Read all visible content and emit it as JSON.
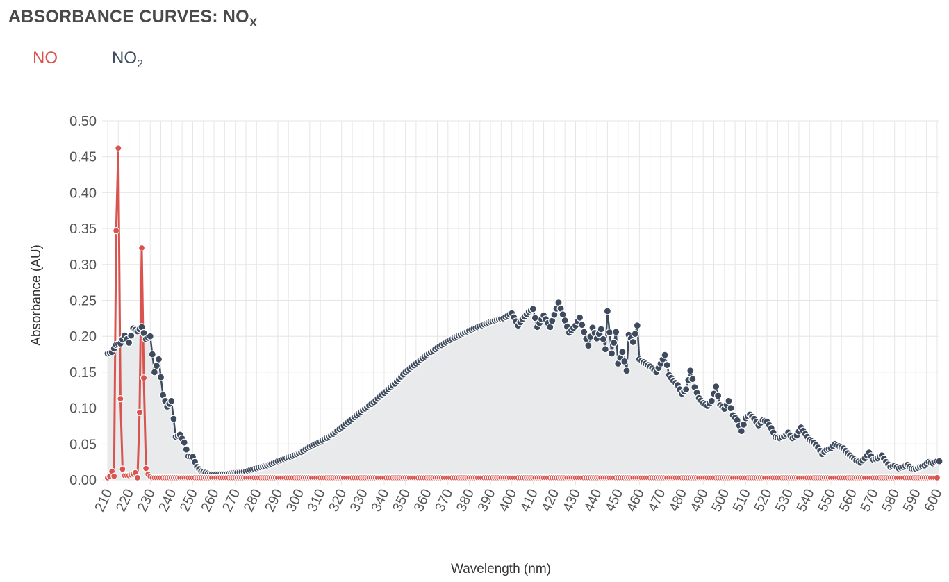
{
  "header": {
    "title_main": "ABSORBANCE CURVES: NO",
    "title_sub": "X"
  },
  "legend": [
    {
      "main": "NO",
      "sub": "",
      "color": "#d9534f"
    },
    {
      "main": "NO",
      "sub": "2",
      "color": "#3e4b5e"
    }
  ],
  "colors": {
    "no": "#d9534f",
    "no2": "#3e4b5e",
    "area": "#e9eaec",
    "grid": "#e6e6e6"
  },
  "chart_data": {
    "type": "line",
    "title": "ABSORBANCE CURVES: NOX",
    "xlabel": "Wavelength (nm)",
    "ylabel": "Absorbance (AU)",
    "xlim": [
      210,
      601
    ],
    "ylim": [
      0,
      0.5
    ],
    "yticks": [
      "0.00",
      "0.05",
      "0.10",
      "0.15",
      "0.20",
      "0.25",
      "0.30",
      "0.35",
      "0.40",
      "0.45",
      "0.50"
    ],
    "xticks": [
      "210",
      "220",
      "230",
      "240",
      "250",
      "260",
      "270",
      "280",
      "290",
      "300",
      "310",
      "320",
      "330",
      "340",
      "350",
      "360",
      "370",
      "380",
      "390",
      "400",
      "410",
      "420",
      "430",
      "440",
      "450",
      "460",
      "470",
      "480",
      "490",
      "500",
      "510",
      "520",
      "530",
      "540",
      "550",
      "560",
      "570",
      "580",
      "590",
      "600"
    ],
    "grid": true,
    "series": [
      {
        "name": "NO",
        "color": "#d9534f",
        "fill": false,
        "base": 0.003,
        "peaks": [
          [
            211,
            0.005
          ],
          [
            212,
            0.012
          ],
          [
            213,
            0.005
          ],
          [
            214,
            0.347
          ],
          [
            215,
            0.462
          ],
          [
            216,
            0.113
          ],
          [
            217,
            0.015
          ],
          [
            218,
            0.006
          ],
          [
            219,
            0.006
          ],
          [
            220,
            0.006
          ],
          [
            221,
            0.007
          ],
          [
            222,
            0.008
          ],
          [
            223,
            0.01
          ],
          [
            224,
            0.003
          ],
          [
            225,
            0.094
          ],
          [
            226,
            0.323
          ],
          [
            227,
            0.142
          ],
          [
            228,
            0.016
          ],
          [
            229,
            0.008
          ],
          [
            230,
            0.005
          ]
        ]
      },
      {
        "name": "NO2",
        "color": "#3e4b5e",
        "fill": true,
        "points": [
          [
            210,
            0.176
          ],
          [
            212,
            0.178
          ],
          [
            214,
            0.188
          ],
          [
            216,
            0.19
          ],
          [
            218,
            0.201
          ],
          [
            220,
            0.191
          ],
          [
            222,
            0.211
          ],
          [
            224,
            0.207
          ],
          [
            226,
            0.213
          ],
          [
            228,
            0.196
          ],
          [
            230,
            0.2
          ],
          [
            232,
            0.15
          ],
          [
            234,
            0.168
          ],
          [
            236,
            0.118
          ],
          [
            238,
            0.102
          ],
          [
            240,
            0.11
          ],
          [
            242,
            0.06
          ],
          [
            244,
            0.063
          ],
          [
            246,
            0.052
          ],
          [
            248,
            0.033
          ],
          [
            250,
            0.032
          ],
          [
            252,
            0.018
          ],
          [
            254,
            0.012
          ],
          [
            256,
            0.01
          ],
          [
            258,
            0.008
          ],
          [
            262,
            0.008
          ],
          [
            266,
            0.008
          ],
          [
            270,
            0.01
          ],
          [
            275,
            0.012
          ],
          [
            280,
            0.016
          ],
          [
            285,
            0.02
          ],
          [
            290,
            0.026
          ],
          [
            295,
            0.031
          ],
          [
            300,
            0.037
          ],
          [
            305,
            0.046
          ],
          [
            310,
            0.053
          ],
          [
            315,
            0.062
          ],
          [
            320,
            0.073
          ],
          [
            325,
            0.085
          ],
          [
            330,
            0.097
          ],
          [
            335,
            0.108
          ],
          [
            340,
            0.121
          ],
          [
            345,
            0.134
          ],
          [
            350,
            0.15
          ],
          [
            355,
            0.162
          ],
          [
            360,
            0.174
          ],
          [
            365,
            0.184
          ],
          [
            370,
            0.193
          ],
          [
            375,
            0.201
          ],
          [
            380,
            0.208
          ],
          [
            385,
            0.214
          ],
          [
            390,
            0.22
          ],
          [
            393,
            0.223
          ],
          [
            396,
            0.225
          ],
          [
            400,
            0.232
          ],
          [
            403,
            0.215
          ],
          [
            405,
            0.224
          ],
          [
            408,
            0.234
          ],
          [
            410,
            0.238
          ],
          [
            412,
            0.213
          ],
          [
            415,
            0.229
          ],
          [
            418,
            0.213
          ],
          [
            420,
            0.23
          ],
          [
            422,
            0.247
          ],
          [
            425,
            0.222
          ],
          [
            427,
            0.205
          ],
          [
            430,
            0.215
          ],
          [
            432,
            0.226
          ],
          [
            434,
            0.206
          ],
          [
            436,
            0.187
          ],
          [
            438,
            0.212
          ],
          [
            440,
            0.197
          ],
          [
            442,
            0.21
          ],
          [
            444,
            0.182
          ],
          [
            445,
            0.235
          ],
          [
            447,
            0.176
          ],
          [
            449,
            0.206
          ],
          [
            450,
            0.162
          ],
          [
            452,
            0.178
          ],
          [
            454,
            0.152
          ],
          [
            455,
            0.202
          ],
          [
            457,
            0.192
          ],
          [
            459,
            0.215
          ],
          [
            460,
            0.168
          ],
          [
            462,
            0.164
          ],
          [
            465,
            0.158
          ],
          [
            468,
            0.15
          ],
          [
            470,
            0.162
          ],
          [
            472,
            0.174
          ],
          [
            474,
            0.146
          ],
          [
            476,
            0.138
          ],
          [
            478,
            0.132
          ],
          [
            480,
            0.12
          ],
          [
            482,
            0.126
          ],
          [
            484,
            0.152
          ],
          [
            486,
            0.129
          ],
          [
            488,
            0.114
          ],
          [
            490,
            0.107
          ],
          [
            492,
            0.103
          ],
          [
            494,
            0.11
          ],
          [
            496,
            0.13
          ],
          [
            498,
            0.104
          ],
          [
            500,
            0.099
          ],
          [
            502,
            0.11
          ],
          [
            504,
            0.09
          ],
          [
            506,
            0.083
          ],
          [
            508,
            0.068
          ],
          [
            510,
            0.086
          ],
          [
            512,
            0.091
          ],
          [
            514,
            0.085
          ],
          [
            516,
            0.076
          ],
          [
            518,
            0.083
          ],
          [
            520,
            0.081
          ],
          [
            522,
            0.072
          ],
          [
            524,
            0.06
          ],
          [
            526,
            0.058
          ],
          [
            528,
            0.061
          ],
          [
            530,
            0.066
          ],
          [
            532,
            0.058
          ],
          [
            534,
            0.062
          ],
          [
            536,
            0.073
          ],
          [
            538,
            0.064
          ],
          [
            540,
            0.056
          ],
          [
            542,
            0.052
          ],
          [
            544,
            0.045
          ],
          [
            546,
            0.036
          ],
          [
            548,
            0.042
          ],
          [
            550,
            0.044
          ],
          [
            552,
            0.05
          ],
          [
            554,
            0.047
          ],
          [
            556,
            0.044
          ],
          [
            558,
            0.037
          ],
          [
            560,
            0.031
          ],
          [
            562,
            0.027
          ],
          [
            564,
            0.024
          ],
          [
            566,
            0.03
          ],
          [
            568,
            0.038
          ],
          [
            570,
            0.028
          ],
          [
            572,
            0.03
          ],
          [
            574,
            0.034
          ],
          [
            576,
            0.025
          ],
          [
            578,
            0.018
          ],
          [
            580,
            0.02
          ],
          [
            582,
            0.016
          ],
          [
            584,
            0.018
          ],
          [
            586,
            0.021
          ],
          [
            588,
            0.016
          ],
          [
            590,
            0.015
          ],
          [
            592,
            0.018
          ],
          [
            594,
            0.02
          ],
          [
            596,
            0.025
          ],
          [
            598,
            0.023
          ],
          [
            600,
            0.026
          ]
        ]
      }
    ]
  }
}
